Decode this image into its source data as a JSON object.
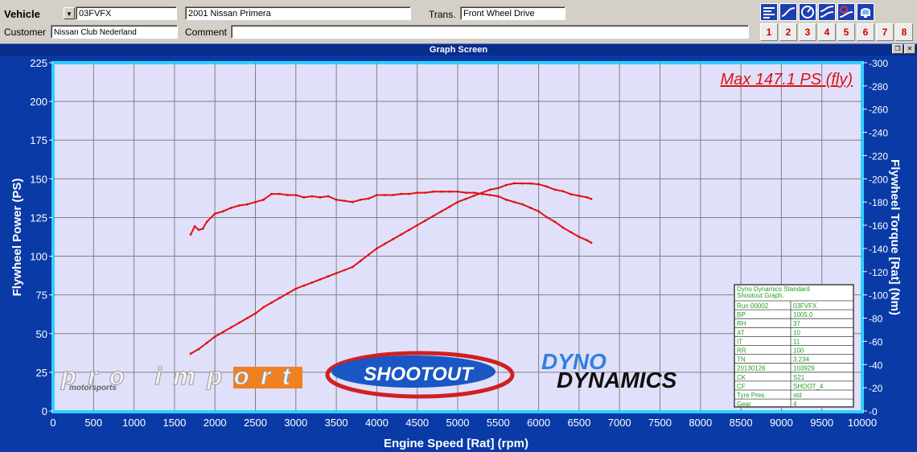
{
  "header": {
    "vehicle_label": "Vehicle",
    "vehicle_id": "03FVFX",
    "vehicle_desc": "2001 Nissan Primera",
    "trans_label": "Trans.",
    "trans_value": "Front Wheel Drive",
    "customer_label": "Customer",
    "customer_value": "Nissan Club Nederland",
    "comment_label": "Comment",
    "comment_value": ""
  },
  "toolbar": {
    "tools": [
      "menu-lines-icon",
      "curve-icon",
      "gauge-icon",
      "wave-curves-icon",
      "clock-curve-icon",
      "bell-icon"
    ],
    "run_buttons": [
      "1",
      "2",
      "3",
      "4",
      "5",
      "6",
      "7",
      "8"
    ]
  },
  "window": {
    "title": "Graph Screen"
  },
  "max_annotation": "Max 147.1 PS (fly)",
  "logos": {
    "proimport": "pro import",
    "proimport_sub": "motorsports",
    "shootout": "SHOOTOUT",
    "dyno": "DYNO",
    "dynamics": "DYNAMICS"
  },
  "info_box": {
    "title1": "Dyno Dynamics Standard",
    "title2": "Shootout Graph.",
    "rows": [
      [
        "Run 00002",
        "03FVFX"
      ],
      [
        "BP",
        "1005.0"
      ],
      [
        "RH",
        "37"
      ],
      [
        "AT",
        "10"
      ],
      [
        "IT",
        "11"
      ],
      [
        "RR",
        "100"
      ],
      [
        "TN",
        "3.234"
      ],
      [
        "20130126",
        "103929"
      ],
      [
        "CK",
        "S21"
      ],
      [
        "CF",
        "SHOOT_4"
      ],
      [
        "Tyre Pres.",
        "std"
      ],
      [
        "Gear",
        "4"
      ]
    ]
  },
  "chart_data": {
    "type": "line",
    "xlabel": "Engine Speed [Rat] (rpm)",
    "ylabel": "Flywheel Power (PS)",
    "y2label": "Flywheel Torque [Rat] (Nm)",
    "xlim": [
      0,
      10000
    ],
    "ylim": [
      0,
      225
    ],
    "y2lim": [
      0,
      300
    ],
    "x_ticks": [
      0,
      500,
      1000,
      1500,
      2000,
      2500,
      3000,
      3500,
      4000,
      4500,
      5000,
      5500,
      6000,
      6500,
      7000,
      7500,
      8000,
      8500,
      9000,
      9500,
      10000
    ],
    "y_ticks": [
      0,
      25,
      50,
      75,
      100,
      125,
      150,
      175,
      200,
      225
    ],
    "y2_ticks": [
      0,
      20,
      40,
      60,
      80,
      100,
      120,
      140,
      160,
      180,
      200,
      220,
      240,
      260,
      280,
      300
    ],
    "grid": true,
    "series": [
      {
        "axis": "left",
        "color": "#e01010",
        "x": [
          1700,
          1800,
          1900,
          2000,
          2100,
          2200,
          2300,
          2400,
          2500,
          2600,
          2700,
          2800,
          2900,
          3000,
          3100,
          3200,
          3300,
          3400,
          3500,
          3600,
          3700,
          3800,
          3900,
          4000,
          4100,
          4200,
          4300,
          4400,
          4500,
          4600,
          4700,
          4800,
          4900,
          5000,
          5100,
          5200,
          5300,
          5400,
          5500,
          5600,
          5700,
          5800,
          5900,
          6000,
          6100,
          6200,
          6300,
          6400,
          6500,
          6600,
          6650
        ],
        "values": [
          37,
          40,
          44,
          48,
          51,
          54,
          57,
          60,
          63,
          67,
          70,
          73,
          76,
          79,
          81,
          83,
          85,
          87,
          89,
          91,
          93,
          97,
          101,
          105,
          108,
          111,
          114,
          117,
          120,
          123,
          126,
          129,
          132,
          135,
          137,
          139,
          141,
          143,
          144,
          146,
          147.1,
          147,
          147,
          146.5,
          145,
          143,
          142,
          140,
          139,
          138,
          137
        ]
      },
      {
        "axis": "right",
        "color": "#e01010",
        "x": [
          1700,
          1750,
          1800,
          1850,
          1900,
          2000,
          2100,
          2200,
          2300,
          2400,
          2500,
          2600,
          2700,
          2800,
          2900,
          3000,
          3100,
          3200,
          3300,
          3400,
          3500,
          3600,
          3700,
          3800,
          3900,
          4000,
          4100,
          4200,
          4300,
          4400,
          4500,
          4600,
          4700,
          4800,
          4900,
          5000,
          5100,
          5200,
          5300,
          5400,
          5500,
          5600,
          5700,
          5800,
          5900,
          6000,
          6100,
          6200,
          6300,
          6400,
          6500,
          6600,
          6650
        ],
        "values": [
          152,
          159,
          156,
          157,
          163,
          170,
          172,
          175,
          177,
          178,
          180,
          182,
          187,
          187,
          186,
          186,
          184,
          185,
          184,
          185,
          182,
          181,
          180,
          182,
          183,
          186,
          186,
          186,
          187,
          187,
          188,
          188,
          189,
          189,
          189,
          189,
          188,
          188,
          187,
          186,
          185,
          182,
          180,
          178,
          175,
          172,
          167,
          163,
          158,
          154,
          150,
          147,
          145
        ]
      }
    ]
  }
}
